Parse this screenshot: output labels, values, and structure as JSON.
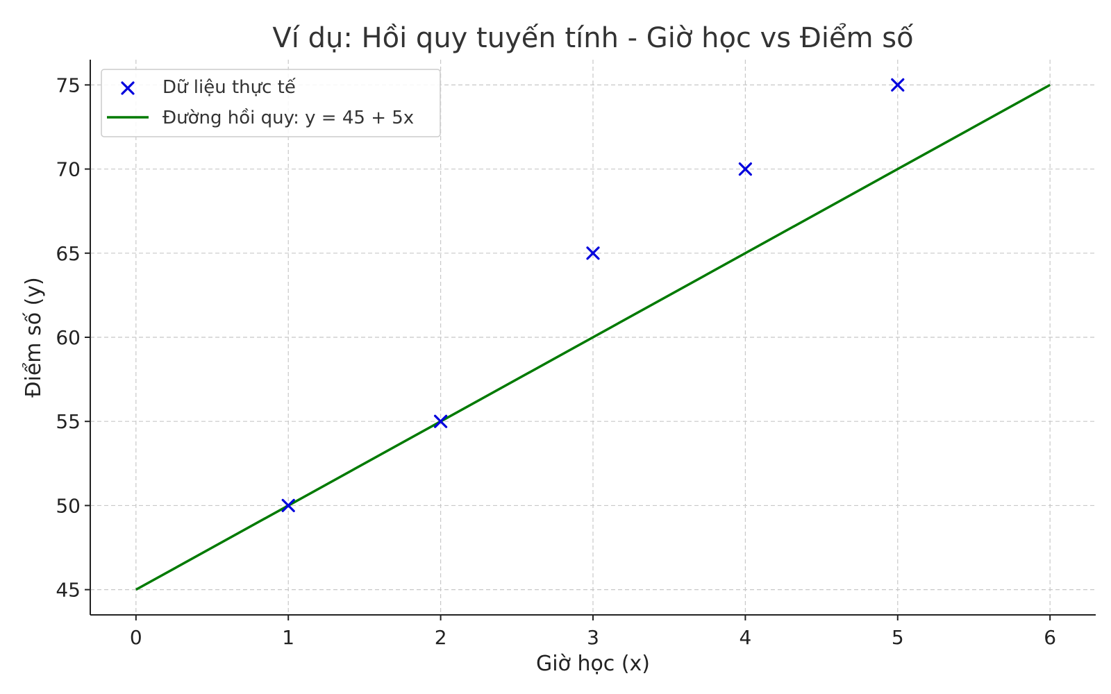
{
  "chart_data": {
    "type": "scatter",
    "title": "Ví dụ: Hồi quy tuyến tính - Giờ học vs Điểm số",
    "xlabel": "Giờ học (x)",
    "ylabel": "Điểm số (y)",
    "xlim": [
      -0.3,
      6.3
    ],
    "ylim": [
      43.5,
      76.5
    ],
    "x_ticks": [
      0,
      1,
      2,
      3,
      4,
      5,
      6
    ],
    "y_ticks": [
      45,
      50,
      55,
      60,
      65,
      70,
      75
    ],
    "grid": true,
    "legend_position": "top-left",
    "series": [
      {
        "name": "Dữ liệu thực tế",
        "kind": "scatter",
        "marker": "x",
        "color": "#0000dd",
        "x": [
          1,
          2,
          3,
          4,
          5
        ],
        "y": [
          50,
          55,
          65,
          70,
          75
        ]
      },
      {
        "name": "Đường hồi quy: y = 45 + 5x",
        "kind": "line",
        "color": "#007a00",
        "x": [
          0,
          6
        ],
        "y": [
          45,
          75
        ]
      }
    ]
  }
}
